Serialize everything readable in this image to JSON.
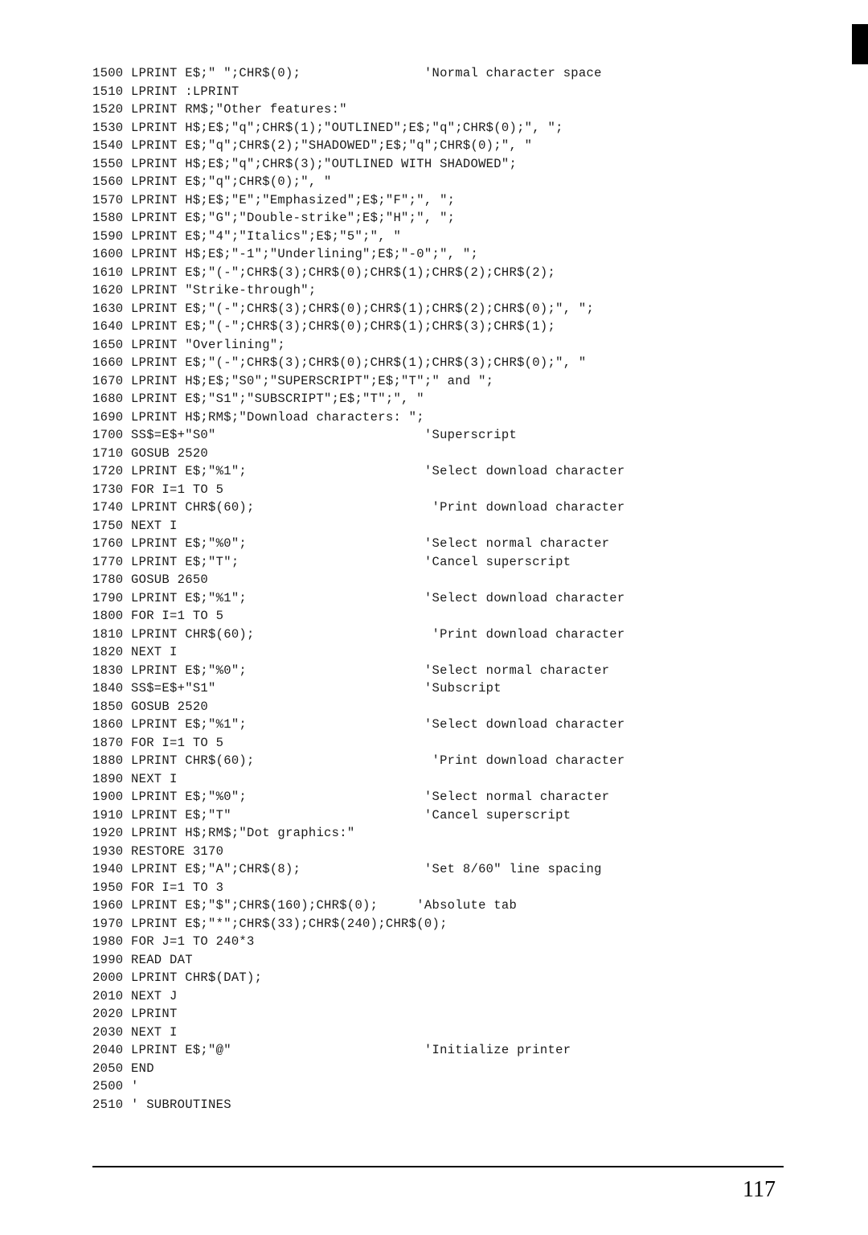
{
  "code_lines": [
    "1500 LPRINT E$;\" \";CHR$(0);                'Normal character space",
    "1510 LPRINT :LPRINT",
    "1520 LPRINT RM$;\"Other features:\"",
    "1530 LPRINT H$;E$;\"q\";CHR$(1);\"OUTLINED\";E$;\"q\";CHR$(0);\", \";",
    "1540 LPRINT E$;\"q\";CHR$(2);\"SHADOWED\";E$;\"q\";CHR$(0);\", \"",
    "1550 LPRINT H$;E$;\"q\";CHR$(3);\"OUTLINED WITH SHADOWED\";",
    "1560 LPRINT E$;\"q\";CHR$(0);\", \"",
    "1570 LPRINT H$;E$;\"E\";\"Emphasized\";E$;\"F\";\", \";",
    "1580 LPRINT E$;\"G\";\"Double-strike\";E$;\"H\";\", \";",
    "1590 LPRINT E$;\"4\";\"Italics\";E$;\"5\";\", \"",
    "1600 LPRINT H$;E$;\"-1\";\"Underlining\";E$;\"-0\";\", \";",
    "1610 LPRINT E$;\"(-\";CHR$(3);CHR$(0);CHR$(1);CHR$(2);CHR$(2);",
    "1620 LPRINT \"Strike-through\";",
    "1630 LPRINT E$;\"(-\";CHR$(3);CHR$(0);CHR$(1);CHR$(2);CHR$(0);\", \";",
    "1640 LPRINT E$;\"(-\";CHR$(3);CHR$(0);CHR$(1);CHR$(3);CHR$(1);",
    "1650 LPRINT \"Overlining\";",
    "1660 LPRINT E$;\"(-\";CHR$(3);CHR$(0);CHR$(1);CHR$(3);CHR$(0);\", \"",
    "1670 LPRINT H$;E$;\"S0\";\"SUPERSCRIPT\";E$;\"T\";\" and \";",
    "1680 LPRINT E$;\"S1\";\"SUBSCRIPT\";E$;\"T\";\", \"",
    "1690 LPRINT H$;RM$;\"Download characters: \";",
    "1700 SS$=E$+\"S0\"                           'Superscript",
    "1710 GOSUB 2520",
    "1720 LPRINT E$;\"%1\";                       'Select download character",
    "1730 FOR I=1 TO 5",
    "1740 LPRINT CHR$(60);                       'Print download character",
    "1750 NEXT I",
    "1760 LPRINT E$;\"%0\";                       'Select normal character",
    "1770 LPRINT E$;\"T\";                        'Cancel superscript",
    "1780 GOSUB 2650",
    "1790 LPRINT E$;\"%1\";                       'Select download character",
    "1800 FOR I=1 TO 5",
    "1810 LPRINT CHR$(60);                       'Print download character",
    "1820 NEXT I",
    "1830 LPRINT E$;\"%0\";                       'Select normal character",
    "1840 SS$=E$+\"S1\"                           'Subscript",
    "1850 GOSUB 2520",
    "1860 LPRINT E$;\"%1\";                       'Select download character",
    "1870 FOR I=1 TO 5",
    "1880 LPRINT CHR$(60);                       'Print download character",
    "1890 NEXT I",
    "1900 LPRINT E$;\"%0\";                       'Select normal character",
    "1910 LPRINT E$;\"T\"                         'Cancel superscript",
    "1920 LPRINT H$;RM$;\"Dot graphics:\"",
    "1930 RESTORE 3170",
    "1940 LPRINT E$;\"A\";CHR$(8);                'Set 8/60\" line spacing",
    "1950 FOR I=1 TO 3",
    "1960 LPRINT E$;\"$\";CHR$(160);CHR$(0);     'Absolute tab",
    "1970 LPRINT E$;\"*\";CHR$(33);CHR$(240);CHR$(0);",
    "1980 FOR J=1 TO 240*3",
    "1990 READ DAT",
    "2000 LPRINT CHR$(DAT);",
    "2010 NEXT J",
    "2020 LPRINT",
    "2030 NEXT I",
    "2040 LPRINT E$;\"@\"                         'Initialize printer",
    "2050 END",
    "2500 '",
    "2510 ' SUBROUTINES"
  ],
  "page_number": "117",
  "text_color": "#1a1a1a",
  "background_color": "#ffffff",
  "font_size_code": 15.5,
  "line_height": 22.5,
  "font_size_pagenum": 28
}
